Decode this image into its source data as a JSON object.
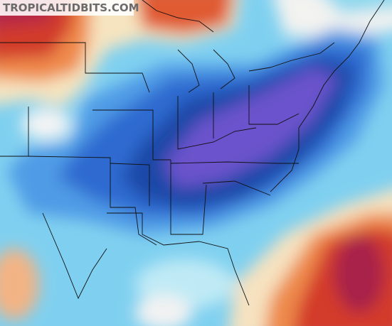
{
  "watermark": "TROPICALTIDBITS.COM"
}
